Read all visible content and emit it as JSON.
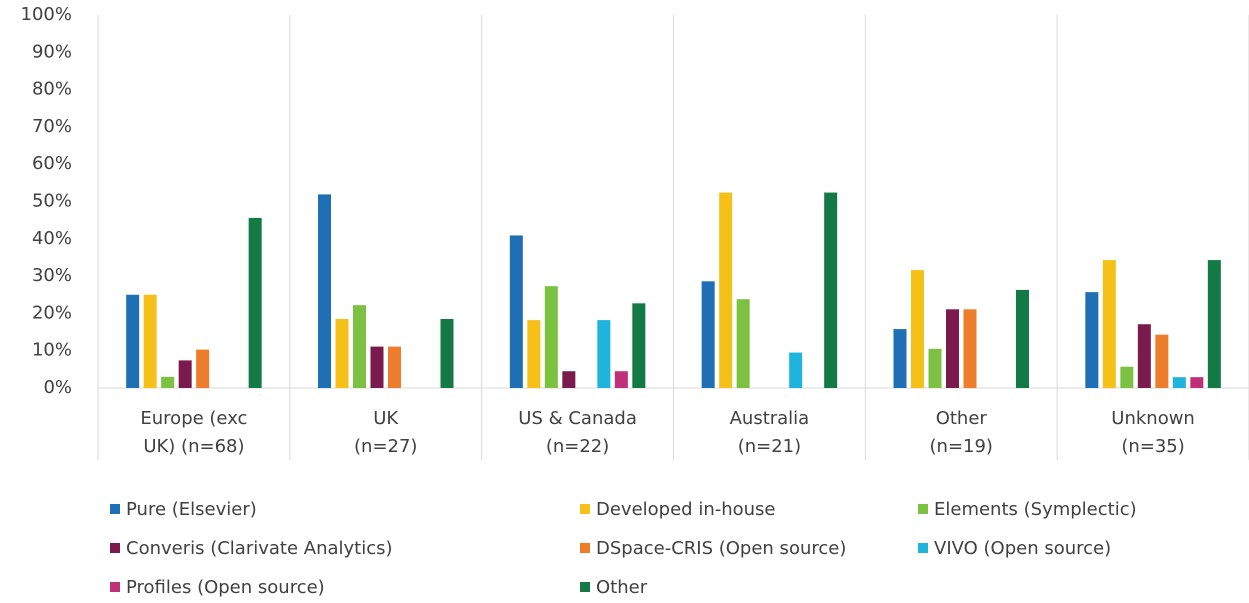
{
  "chart_data": {
    "type": "bar",
    "categories": [
      "Europe (exc\nUK) (n=68)",
      "UK\n(n=27)",
      "US & Canada\n(n=22)",
      "Australia\n(n=21)",
      "Other\n(n=19)",
      "Unknown\n(n=35)"
    ],
    "series": [
      {
        "name": "Pure (Elsevier)",
        "color": "#1f6fb4",
        "values": [
          25,
          51.9,
          40.9,
          28.6,
          15.8,
          25.7
        ]
      },
      {
        "name": "Developed in-house",
        "color": "#f5c018",
        "values": [
          25,
          18.5,
          18.2,
          52.4,
          31.6,
          34.3
        ]
      },
      {
        "name": "Elements (Symplectic)",
        "color": "#7cc142",
        "values": [
          3,
          22.2,
          27.3,
          23.8,
          10.5,
          5.7
        ]
      },
      {
        "name": "Converis (Clarivate Analytics)",
        "color": "#7b1a4d",
        "values": [
          7.4,
          11.1,
          4.5,
          0,
          21.1,
          17.1
        ]
      },
      {
        "name": "DSpace-CRIS (Open source)",
        "color": "#ee7d2b",
        "values": [
          10.3,
          11.1,
          0,
          0,
          21.1,
          14.3
        ]
      },
      {
        "name": "VIVO (Open source)",
        "color": "#1eb4dd",
        "values": [
          0,
          0,
          18.2,
          9.5,
          0,
          2.9
        ]
      },
      {
        "name": "Profiles (Open source)",
        "color": "#c0307a",
        "values": [
          0,
          0,
          4.5,
          0,
          0,
          2.9
        ]
      },
      {
        "name": "Other",
        "color": "#137a45",
        "values": [
          45.6,
          18.5,
          22.7,
          52.4,
          26.3,
          34.3
        ]
      }
    ],
    "ylim": [
      0,
      100
    ],
    "yticks": [
      {
        "value": 0,
        "label": "0%"
      },
      {
        "value": 10,
        "label": "10%"
      },
      {
        "value": 20,
        "label": "20%"
      },
      {
        "value": 30,
        "label": "30%"
      },
      {
        "value": 40,
        "label": "40%"
      },
      {
        "value": 50,
        "label": "50%"
      },
      {
        "value": 60,
        "label": "60%"
      },
      {
        "value": 70,
        "label": "70%"
      },
      {
        "value": 80,
        "label": "80%"
      },
      {
        "value": 90,
        "label": "90%"
      },
      {
        "value": 100,
        "label": "100%"
      }
    ],
    "grid": false,
    "legend": "bottom"
  }
}
